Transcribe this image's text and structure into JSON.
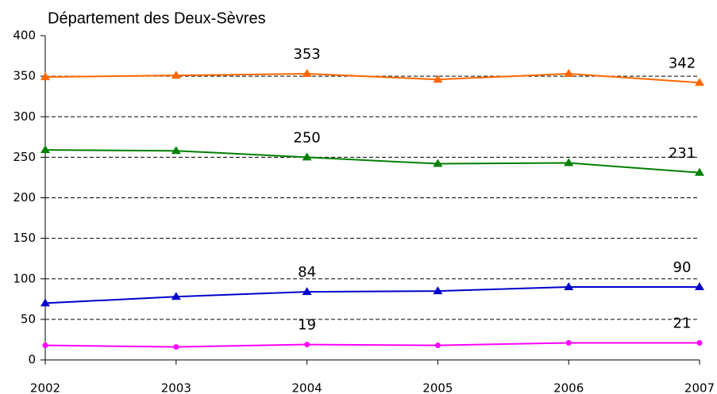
{
  "chart_data": {
    "type": "line",
    "title": "Département des Deux-Sèvres",
    "x": [
      2002,
      2003,
      2004,
      2005,
      2006,
      2007
    ],
    "xlim": [
      2002,
      2007
    ],
    "xticks": [
      2002,
      2003,
      2004,
      2005,
      2006,
      2007
    ],
    "ylim": [
      0,
      400
    ],
    "yticks": [
      0,
      50,
      100,
      150,
      200,
      250,
      300,
      350,
      400
    ],
    "grid": true,
    "series": [
      {
        "color": "#ff6600",
        "marker": "triangle",
        "values": [
          349,
          351,
          353,
          346,
          353,
          342
        ],
        "value_labels": [
          null,
          null,
          "353",
          null,
          null,
          "342"
        ]
      },
      {
        "color": "#008000",
        "marker": "triangle",
        "values": [
          259,
          258,
          250,
          242,
          243,
          231
        ],
        "value_labels": [
          null,
          null,
          "250",
          null,
          null,
          "231"
        ]
      },
      {
        "color": "#0000cc",
        "marker": "triangle",
        "values": [
          70,
          78,
          84,
          85,
          90,
          90
        ],
        "value_labels": [
          null,
          null,
          "84",
          null,
          null,
          "90"
        ]
      },
      {
        "color": "#ff00ff",
        "marker": "circle",
        "values": [
          18,
          16,
          19,
          18,
          21,
          21
        ],
        "value_labels": [
          null,
          null,
          "19",
          null,
          null,
          "21"
        ]
      }
    ]
  }
}
